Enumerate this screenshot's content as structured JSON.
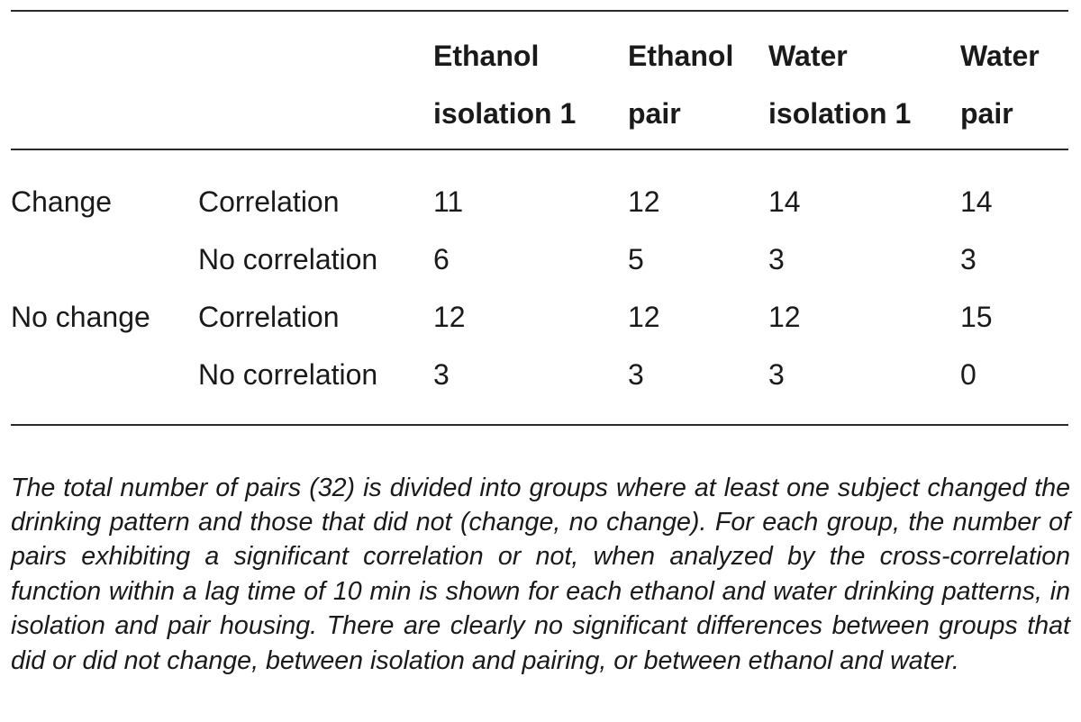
{
  "table": {
    "columns": [
      {
        "line1": "Ethanol",
        "line2": "isolation 1"
      },
      {
        "line1": "Ethanol",
        "line2": "pair"
      },
      {
        "line1": "Water",
        "line2": "isolation 1"
      },
      {
        "line1": "Water",
        "line2": "pair"
      }
    ],
    "rows": [
      {
        "group": "Change",
        "label": "Correlation",
        "values": [
          "11",
          "12",
          "14",
          "14"
        ]
      },
      {
        "group": "",
        "label": "No correlation",
        "values": [
          "6",
          "5",
          "3",
          "3"
        ]
      },
      {
        "group": "No change",
        "label": "Correlation",
        "values": [
          "12",
          "12",
          "12",
          "15"
        ]
      },
      {
        "group": "",
        "label": "No correlation",
        "values": [
          "3",
          "3",
          "3",
          "0"
        ]
      }
    ]
  },
  "caption": "The total number of pairs (32) is divided into groups where at least one subject changed the drinking pattern and those that did not (change, no change). For each group, the number of pairs exhibiting a significant correlation or not, when analyzed by the cross-correlation function within a lag time of 10 min is shown for each ethanol and water drinking patterns, in isolation and pair housing. There are clearly no significant differences between groups that did or did not change, between isolation and pairing, or between ethanol and water."
}
